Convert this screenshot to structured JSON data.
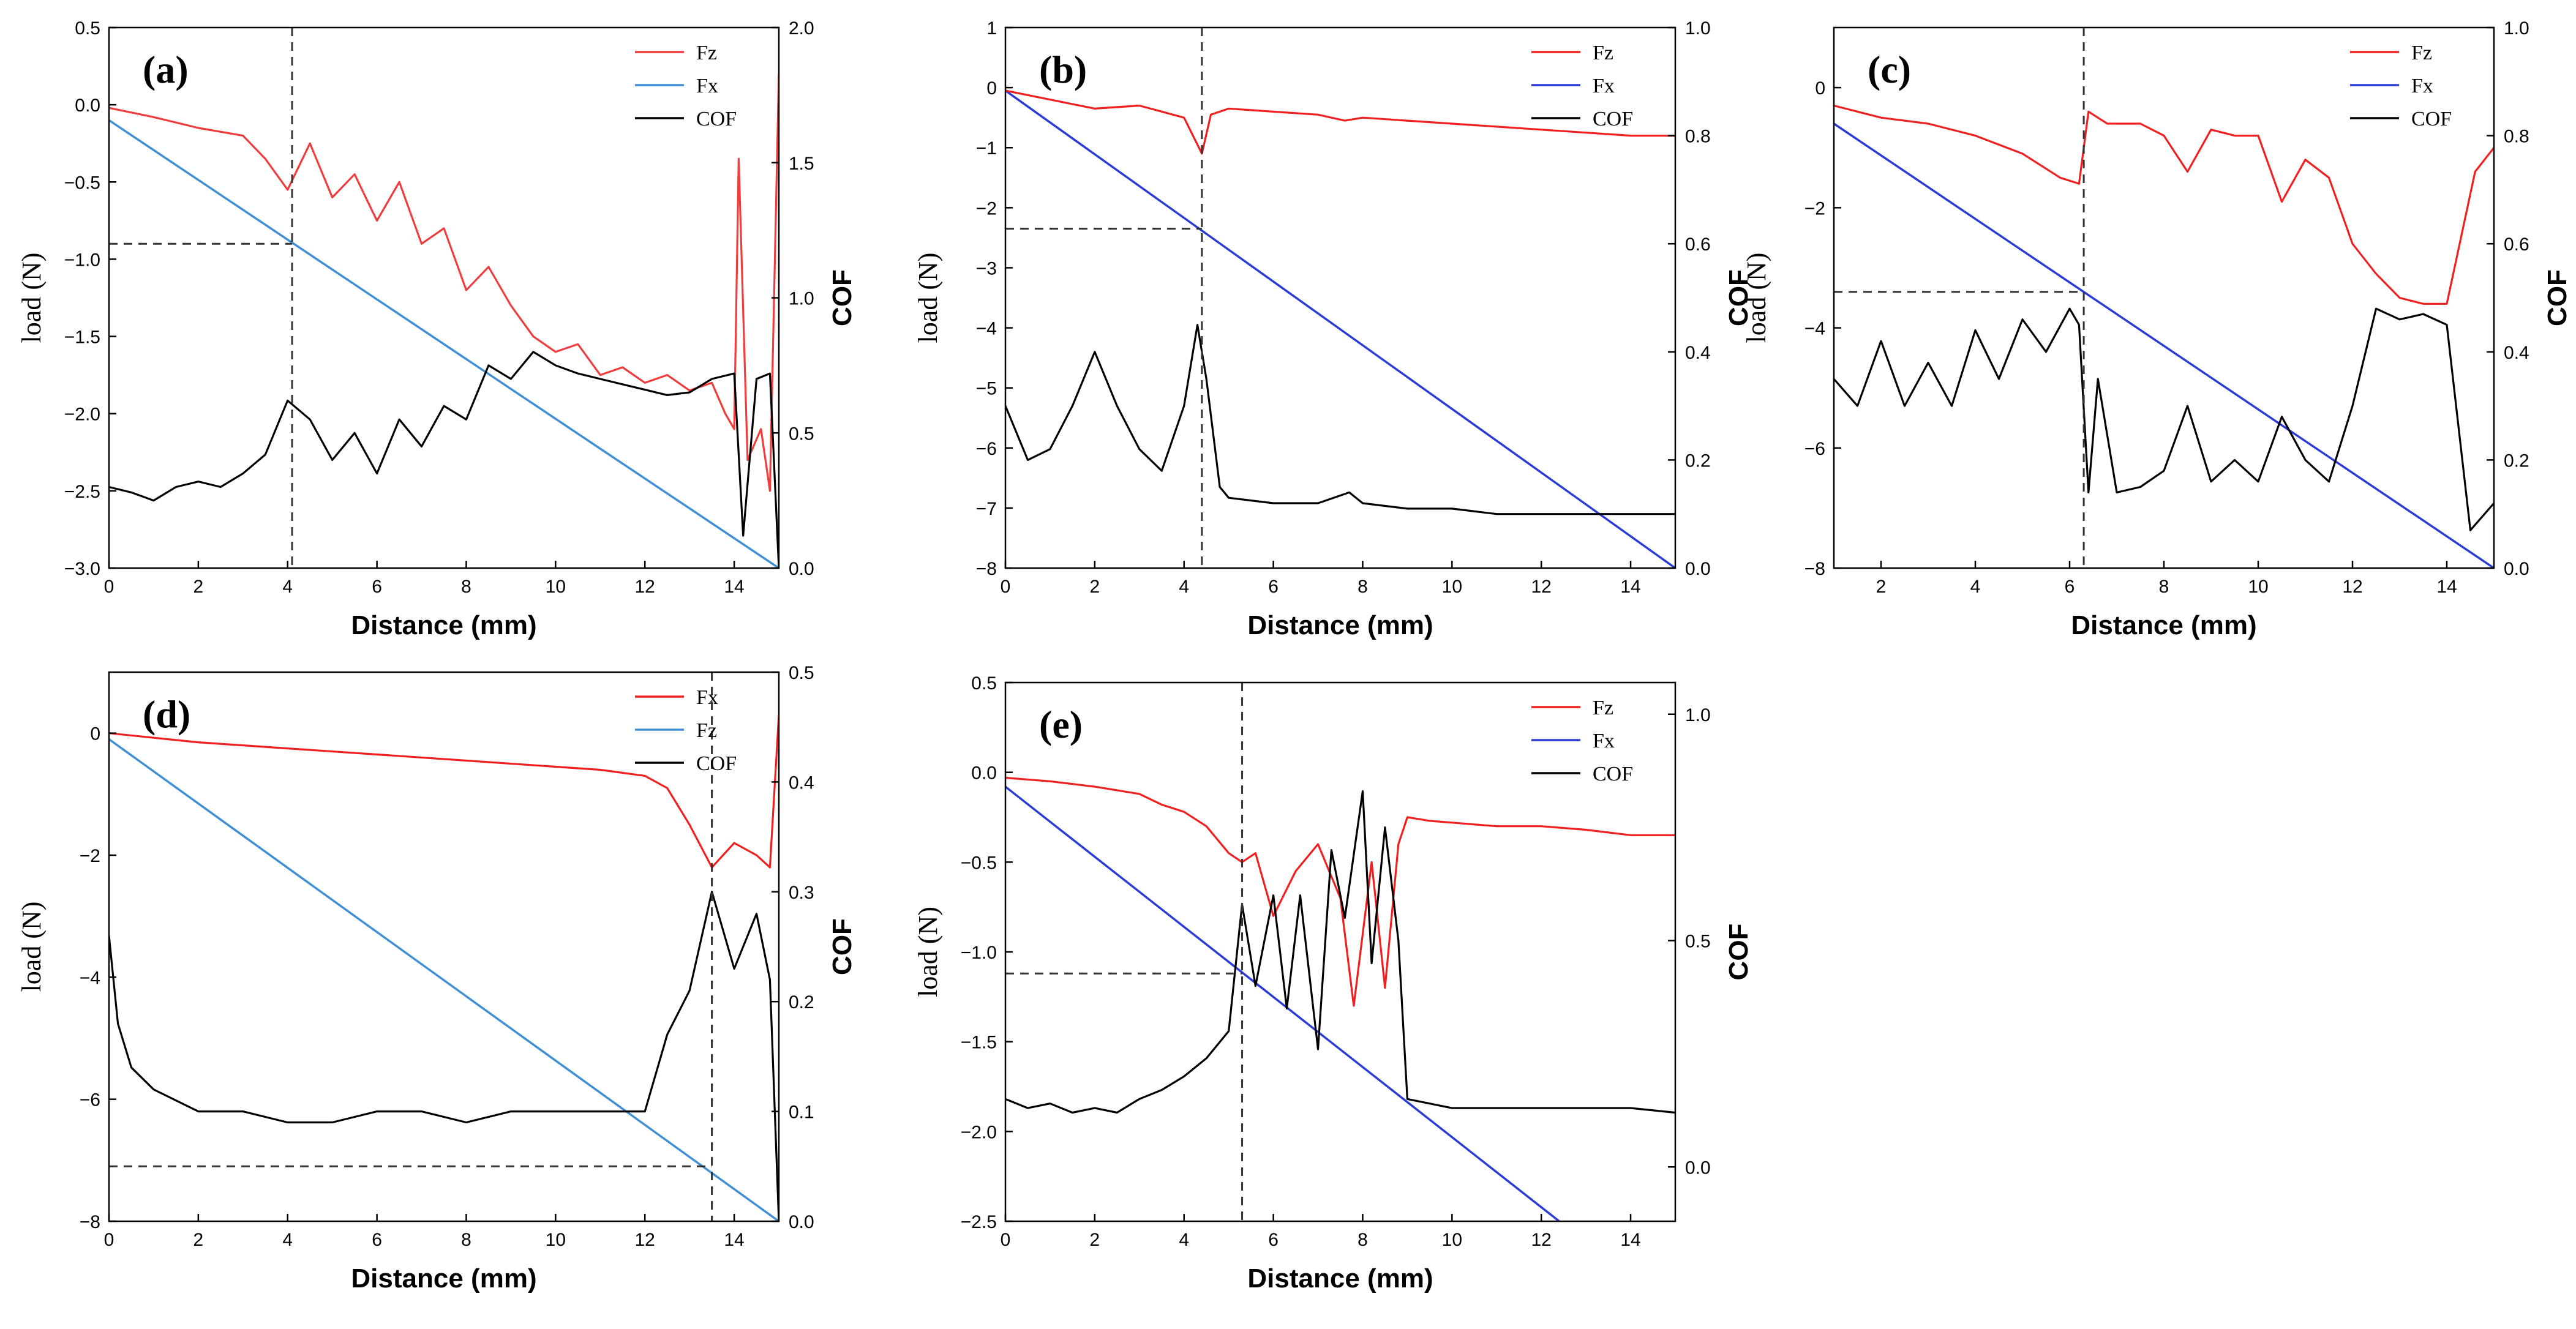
{
  "figure": {
    "description_panels": [
      "a",
      "b",
      "c",
      "d",
      "e"
    ]
  },
  "chart_data": [
    {
      "type": "line",
      "panel_label": "(a)",
      "xlabel": "Distance (mm)",
      "ylabel": "load (N)",
      "y2label": "COF",
      "xlim": [
        0,
        15
      ],
      "ylim": [
        -3.0,
        0.5
      ],
      "y2lim": [
        0.0,
        2.0
      ],
      "xticks": [
        0,
        2,
        4,
        6,
        8,
        10,
        12,
        14
      ],
      "yticks": [
        -3.0,
        -2.5,
        -2.0,
        -1.5,
        -1.0,
        -0.5,
        0.0,
        0.5
      ],
      "yticklabels": [
        "−3.0",
        "−2.5",
        "−2.0",
        "−1.5",
        "−1.0",
        "−0.5",
        "0.0",
        "0.5"
      ],
      "y2ticks": [
        0.0,
        0.5,
        1.0,
        1.5,
        2.0
      ],
      "y2ticklabels": [
        "0.0",
        "0.5",
        "1.0",
        "1.5",
        "2.0"
      ],
      "legend": [
        "Fz",
        "Fx",
        "COF"
      ],
      "legend_position": "top-right",
      "colors": {
        "Fz": "#f03c3c",
        "Fx": "#3f8fd6",
        "COF": "#000000"
      },
      "series": [
        {
          "name": "Fz",
          "axis": "y",
          "x": [
            0,
            1,
            2,
            3,
            3.5,
            4,
            4.5,
            5,
            5.5,
            6,
            6.5,
            7,
            7.5,
            8,
            8.5,
            9,
            9.5,
            10,
            10.5,
            11,
            11.5,
            12,
            12.5,
            13,
            13.5,
            13.8,
            14,
            14.1,
            14.3,
            14.6,
            14.8,
            15
          ],
          "y": [
            -0.02,
            -0.08,
            -0.15,
            -0.2,
            -0.35,
            -0.55,
            -0.25,
            -0.6,
            -0.45,
            -0.75,
            -0.5,
            -0.9,
            -0.8,
            -1.2,
            -1.05,
            -1.3,
            -1.5,
            -1.6,
            -1.55,
            -1.75,
            -1.7,
            -1.8,
            -1.75,
            -1.85,
            -1.8,
            -2.0,
            -2.1,
            -0.35,
            -2.3,
            -2.1,
            -2.5,
            0.2
          ]
        },
        {
          "name": "Fx",
          "axis": "y",
          "x": [
            0,
            15
          ],
          "y": [
            -0.1,
            -3.0
          ]
        },
        {
          "name": "COF",
          "axis": "y2",
          "x": [
            0,
            0.5,
            1,
            1.5,
            2,
            2.5,
            3,
            3.5,
            4,
            4.5,
            5,
            5.5,
            6,
            6.5,
            7,
            7.5,
            8,
            8.5,
            9,
            9.5,
            10,
            10.5,
            11,
            11.5,
            12,
            12.5,
            13,
            13.5,
            14,
            14.2,
            14.5,
            14.8,
            15
          ],
          "y": [
            0.3,
            0.28,
            0.25,
            0.3,
            0.32,
            0.3,
            0.35,
            0.42,
            0.62,
            0.55,
            0.4,
            0.5,
            0.35,
            0.55,
            0.45,
            0.6,
            0.55,
            0.75,
            0.7,
            0.8,
            0.75,
            0.72,
            0.7,
            0.68,
            0.66,
            0.64,
            0.65,
            0.7,
            0.72,
            0.12,
            0.7,
            0.72,
            0.0
          ]
        }
      ],
      "reference_x": 4.1,
      "reference_y": -0.9
    },
    {
      "type": "line",
      "panel_label": "(b)",
      "xlabel": "Distance (mm)",
      "ylabel": "load (N)",
      "y2label": "COF",
      "xlim": [
        0,
        15
      ],
      "ylim": [
        -8,
        1
      ],
      "y2lim": [
        0.0,
        1.0
      ],
      "xticks": [
        0,
        2,
        4,
        6,
        8,
        10,
        12,
        14
      ],
      "yticks": [
        -8,
        -7,
        -6,
        -5,
        -4,
        -3,
        -2,
        -1,
        0,
        1
      ],
      "yticklabels": [
        "−8",
        "−7",
        "−6",
        "−5",
        "−4",
        "−3",
        "−2",
        "−1",
        "0",
        "1"
      ],
      "y2ticks": [
        0.0,
        0.2,
        0.4,
        0.6,
        0.8,
        1.0
      ],
      "y2ticklabels": [
        "0.0",
        "0.2",
        "0.4",
        "0.6",
        "0.8",
        "1.0"
      ],
      "legend": [
        "Fz",
        "Fx",
        "COF"
      ],
      "legend_position": "top-right",
      "colors": {
        "Fz": "#f02020",
        "Fx": "#2a3bd8",
        "COF": "#000000"
      },
      "series": [
        {
          "name": "Fz",
          "axis": "y",
          "x": [
            0,
            1,
            2,
            3,
            4,
            4.4,
            4.6,
            5,
            6,
            7,
            7.6,
            8,
            9,
            10,
            11,
            12,
            13,
            14,
            15
          ],
          "y": [
            -0.05,
            -0.2,
            -0.35,
            -0.3,
            -0.5,
            -1.1,
            -0.45,
            -0.35,
            -0.4,
            -0.45,
            -0.55,
            -0.5,
            -0.55,
            -0.6,
            -0.65,
            -0.7,
            -0.75,
            -0.8,
            -0.8
          ]
        },
        {
          "name": "Fx",
          "axis": "y",
          "x": [
            0,
            15
          ],
          "y": [
            -0.05,
            -8.0
          ]
        },
        {
          "name": "COF",
          "axis": "y2",
          "x": [
            0,
            0.5,
            1,
            1.5,
            2,
            2.5,
            3,
            3.5,
            4,
            4.3,
            4.5,
            4.8,
            5,
            6,
            7,
            7.7,
            8,
            9,
            10,
            11,
            12,
            13,
            14,
            15
          ],
          "y": [
            0.3,
            0.2,
            0.22,
            0.3,
            0.4,
            0.3,
            0.22,
            0.18,
            0.3,
            0.45,
            0.35,
            0.15,
            0.13,
            0.12,
            0.12,
            0.14,
            0.12,
            0.11,
            0.11,
            0.1,
            0.1,
            0.1,
            0.1,
            0.1
          ]
        }
      ],
      "reference_x": 4.4,
      "reference_y": -2.35
    },
    {
      "type": "line",
      "panel_label": "(c)",
      "xlabel": "Distance (mm)",
      "ylabel": "load (N)",
      "y2label": "COF",
      "xlim": [
        1,
        15
      ],
      "ylim": [
        -8,
        1
      ],
      "y2lim": [
        0.0,
        1.0
      ],
      "xticks": [
        2,
        4,
        6,
        8,
        10,
        12,
        14
      ],
      "yticks": [
        -8,
        -6,
        -4,
        -2,
        0
      ],
      "yticklabels": [
        "−8",
        "−6",
        "−4",
        "−2",
        "0"
      ],
      "y2ticks": [
        0.0,
        0.2,
        0.4,
        0.6,
        0.8,
        1.0
      ],
      "y2ticklabels": [
        "0.0",
        "0.2",
        "0.4",
        "0.6",
        "0.8",
        "1.0"
      ],
      "legend": [
        "Fz",
        "Fx",
        "COF"
      ],
      "legend_position": "top-right",
      "colors": {
        "Fz": "#f02020",
        "Fx": "#2a3bd8",
        "COF": "#000000"
      },
      "series": [
        {
          "name": "Fz",
          "axis": "y",
          "x": [
            1,
            2,
            3,
            4,
            5,
            5.8,
            6.2,
            6.4,
            6.8,
            7.5,
            8,
            8.5,
            9,
            9.5,
            10,
            10.5,
            11,
            11.5,
            12,
            12.5,
            13,
            13.5,
            14,
            14.6,
            15
          ],
          "y": [
            -0.3,
            -0.5,
            -0.6,
            -0.8,
            -1.1,
            -1.5,
            -1.6,
            -0.4,
            -0.6,
            -0.6,
            -0.8,
            -1.4,
            -0.7,
            -0.8,
            -0.8,
            -1.9,
            -1.2,
            -1.5,
            -2.6,
            -3.1,
            -3.5,
            -3.6,
            -3.6,
            -1.4,
            -1.0
          ]
        },
        {
          "name": "Fx",
          "axis": "y",
          "x": [
            1,
            15
          ],
          "y": [
            -0.6,
            -8.0
          ]
        },
        {
          "name": "COF",
          "axis": "y2",
          "x": [
            1,
            1.5,
            2,
            2.5,
            3,
            3.5,
            4,
            4.5,
            5,
            5.5,
            6,
            6.2,
            6.4,
            6.6,
            7,
            7.5,
            8,
            8.5,
            9,
            9.5,
            10,
            10.5,
            11,
            11.5,
            12,
            12.5,
            13,
            13.5,
            14,
            14.5,
            15
          ],
          "y": [
            0.35,
            0.3,
            0.42,
            0.3,
            0.38,
            0.3,
            0.44,
            0.35,
            0.46,
            0.4,
            0.48,
            0.45,
            0.14,
            0.35,
            0.14,
            0.15,
            0.18,
            0.3,
            0.16,
            0.2,
            0.16,
            0.28,
            0.2,
            0.16,
            0.3,
            0.48,
            0.46,
            0.47,
            0.45,
            0.07,
            0.12
          ]
        }
      ],
      "reference_x": 6.3,
      "reference_y": -3.4
    },
    {
      "type": "line",
      "panel_label": "(d)",
      "xlabel": "Distance (mm)",
      "ylabel": "load (N)",
      "y2label": "COF",
      "xlim": [
        0,
        15
      ],
      "ylim": [
        -8,
        1
      ],
      "y2lim": [
        0.0,
        0.5
      ],
      "xticks": [
        0,
        2,
        4,
        6,
        8,
        10,
        12,
        14
      ],
      "yticks": [
        -8,
        -6,
        -4,
        -2,
        0
      ],
      "yticklabels": [
        "−8",
        "−6",
        "−4",
        "−2",
        "0"
      ],
      "y2ticks": [
        0.0,
        0.1,
        0.2,
        0.3,
        0.4,
        0.5
      ],
      "y2ticklabels": [
        "0.0",
        "0.1",
        "0.2",
        "0.3",
        "0.4",
        "0.5"
      ],
      "legend": [
        "Fx",
        "Fz",
        "COF"
      ],
      "legend_position": "top-right",
      "colors": {
        "Fx": "#f02020",
        "Fz": "#3f8fd6",
        "COF": "#000000"
      },
      "series": [
        {
          "name": "Fx",
          "axis": "y",
          "x": [
            0,
            2,
            4,
            6,
            8,
            10,
            11,
            12,
            12.5,
            13,
            13.5,
            14,
            14.5,
            14.8,
            15
          ],
          "y": [
            0.0,
            -0.15,
            -0.25,
            -0.35,
            -0.45,
            -0.55,
            -0.6,
            -0.7,
            -0.9,
            -1.5,
            -2.2,
            -1.8,
            -2.0,
            -2.2,
            0.3
          ]
        },
        {
          "name": "Fz",
          "axis": "y",
          "x": [
            0,
            15
          ],
          "y": [
            -0.1,
            -8.0
          ]
        },
        {
          "name": "COF",
          "axis": "y2",
          "x": [
            0,
            0.2,
            0.5,
            1,
            2,
            3,
            4,
            5,
            6,
            7,
            8,
            9,
            10,
            11,
            12,
            12.5,
            13,
            13.5,
            14,
            14.5,
            14.8,
            15
          ],
          "y": [
            0.26,
            0.18,
            0.14,
            0.12,
            0.1,
            0.1,
            0.09,
            0.09,
            0.1,
            0.1,
            0.09,
            0.1,
            0.1,
            0.1,
            0.1,
            0.17,
            0.21,
            0.3,
            0.23,
            0.28,
            0.22,
            0.0
          ]
        }
      ],
      "reference_x": 13.5,
      "reference_y": -7.1
    },
    {
      "type": "line",
      "panel_label": "(e)",
      "xlabel": "Distance (mm)",
      "ylabel": "load (N)",
      "y2label": "COF",
      "xlim": [
        0,
        15
      ],
      "ylim": [
        -2.5,
        0.5
      ],
      "y2lim": [
        -0.12,
        1.07
      ],
      "xticks": [
        0,
        2,
        4,
        6,
        8,
        10,
        12,
        14
      ],
      "yticks": [
        -2.5,
        -2.0,
        -1.5,
        -1.0,
        -0.5,
        0.0,
        0.5
      ],
      "yticklabels": [
        "−2.5",
        "−2.0",
        "−1.5",
        "−1.0",
        "−0.5",
        "0.0",
        "0.5"
      ],
      "y2ticks": [
        0.0,
        0.5,
        1.0
      ],
      "y2ticklabels": [
        "0.0",
        "0.5",
        "1.0"
      ],
      "legend": [
        "Fz",
        "Fx",
        "COF"
      ],
      "legend_position": "top-right",
      "colors": {
        "Fz": "#f02020",
        "Fx": "#2a3bd8",
        "COF": "#000000"
      },
      "series": [
        {
          "name": "Fz",
          "axis": "y",
          "x": [
            0,
            1,
            2,
            3,
            3.5,
            4,
            4.5,
            5,
            5.3,
            5.6,
            6,
            6.5,
            7,
            7.5,
            7.8,
            8,
            8.2,
            8.5,
            8.8,
            9,
            9.5,
            10,
            11,
            12,
            13,
            14,
            15
          ],
          "y": [
            -0.03,
            -0.05,
            -0.08,
            -0.12,
            -0.18,
            -0.22,
            -0.3,
            -0.45,
            -0.5,
            -0.45,
            -0.8,
            -0.55,
            -0.4,
            -0.7,
            -1.3,
            -0.9,
            -0.5,
            -1.2,
            -0.4,
            -0.25,
            -0.27,
            -0.28,
            -0.3,
            -0.3,
            -0.32,
            -0.35,
            -0.35
          ]
        },
        {
          "name": "Fx",
          "axis": "y",
          "x": [
            0,
            12.4
          ],
          "y": [
            -0.08,
            -2.5
          ]
        },
        {
          "name": "COF",
          "axis": "y2",
          "x": [
            0,
            0.5,
            1,
            1.5,
            2,
            2.5,
            3,
            3.5,
            4,
            4.5,
            5,
            5.3,
            5.6,
            6,
            6.3,
            6.6,
            7,
            7.3,
            7.6,
            8,
            8.2,
            8.5,
            8.8,
            9,
            10,
            11,
            12,
            13,
            14,
            15
          ],
          "y": [
            0.15,
            0.13,
            0.14,
            0.12,
            0.13,
            0.12,
            0.15,
            0.17,
            0.2,
            0.24,
            0.3,
            0.58,
            0.4,
            0.6,
            0.35,
            0.6,
            0.26,
            0.7,
            0.55,
            0.83,
            0.45,
            0.75,
            0.5,
            0.15,
            0.13,
            0.13,
            0.13,
            0.13,
            0.13,
            0.12
          ]
        }
      ],
      "reference_x": 5.3,
      "reference_y": -1.12
    }
  ]
}
